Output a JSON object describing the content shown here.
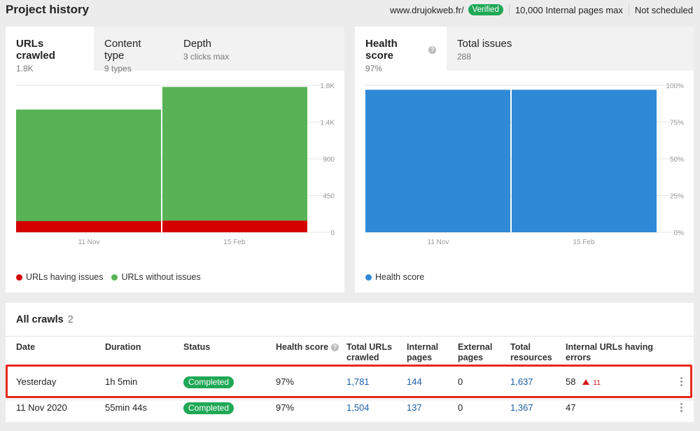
{
  "header": {
    "title": "Project history",
    "site": "www.drujokweb.fr/",
    "verified": "Verified",
    "pages_max": "10,000 Internal pages max",
    "schedule": "Not scheduled"
  },
  "left_card": {
    "tabs": [
      {
        "label": "URLs crawled",
        "sub": "1.8K"
      },
      {
        "label": "Content type",
        "sub": "9 types"
      },
      {
        "label": "Depth",
        "sub": "3 clicks max"
      }
    ],
    "legend": [
      {
        "label": "URLs having issues",
        "color": "#d40000"
      },
      {
        "label": "URLs without issues",
        "color": "#57b356"
      }
    ]
  },
  "right_card": {
    "tabs": [
      {
        "label": "Health score",
        "sub": "97%"
      },
      {
        "label": "Total issues",
        "sub": "288"
      }
    ],
    "legend": [
      {
        "label": "Health score",
        "color": "#2f89d6"
      }
    ]
  },
  "chart_data": [
    {
      "type": "bar",
      "categories": [
        "11 Nov",
        "15 Feb"
      ],
      "series": [
        {
          "name": "URLs having issues",
          "values": [
            137,
            144
          ],
          "color": "#d40000"
        },
        {
          "name": "URLs without issues",
          "values": [
            1367,
            1637
          ],
          "color": "#57b356"
        }
      ],
      "stacked": true,
      "yticks": [
        "0",
        "450",
        "900",
        "1.4K",
        "1.8K"
      ],
      "ylim": [
        0,
        1800
      ],
      "xlabel": "",
      "ylabel": ""
    },
    {
      "type": "bar",
      "categories": [
        "11 Nov",
        "15 Feb"
      ],
      "series": [
        {
          "name": "Health score",
          "values": [
            97,
            97
          ],
          "color": "#2f89d6"
        }
      ],
      "yticks": [
        "0%",
        "25%",
        "50%",
        "75%",
        "100%"
      ],
      "ylim": [
        0,
        100
      ],
      "xlabel": "",
      "ylabel": ""
    }
  ],
  "crawls": {
    "title": "All crawls",
    "count": "2",
    "headers": {
      "date": "Date",
      "duration": "Duration",
      "status": "Status",
      "health": "Health score",
      "total_urls_1": "Total URLs",
      "total_urls_2": "crawled",
      "internal_1": "Internal",
      "internal_2": "pages",
      "external_1": "External",
      "external_2": "pages",
      "resources_1": "Total",
      "resources_2": "resources",
      "errors_1": "Internal URLs having",
      "errors_2": "errors"
    },
    "rows": [
      {
        "date": "Yesterday",
        "duration": "1h 5min",
        "status": "Completed",
        "health": "97%",
        "total_urls": "1,781",
        "internal": "144",
        "external": "0",
        "resources": "1,637",
        "errors": "58",
        "errors_change": "11"
      },
      {
        "date": "11 Nov 2020",
        "duration": "55min 44s",
        "status": "Completed",
        "health": "97%",
        "total_urls": "1,504",
        "internal": "137",
        "external": "0",
        "resources": "1,367",
        "errors": "47",
        "errors_change": ""
      }
    ]
  }
}
